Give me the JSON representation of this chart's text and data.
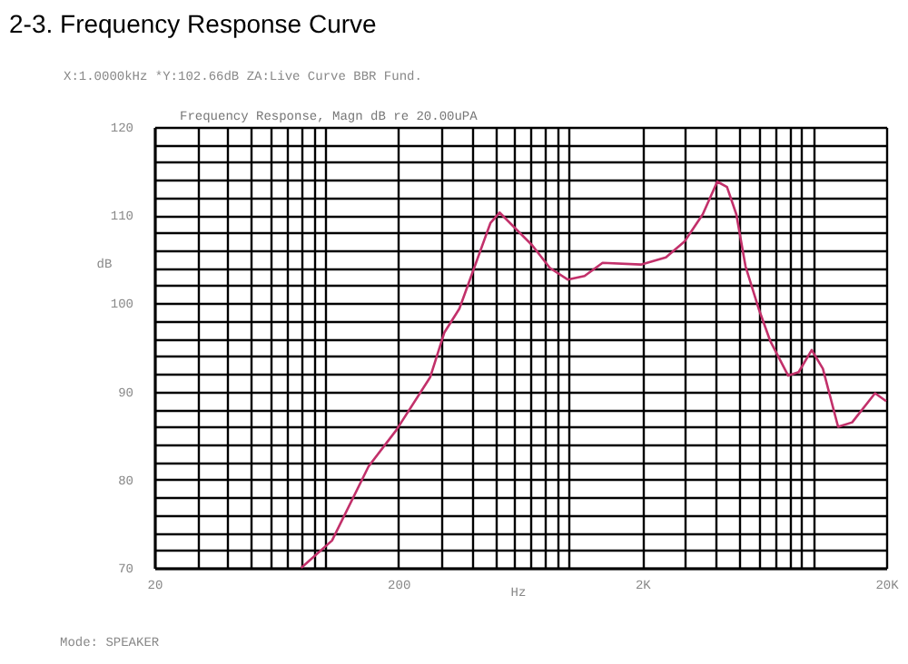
{
  "chart_data": {
    "type": "line",
    "title": "2-3. Frequency Response Curve",
    "subtitle": "Frequency Response, Magn dB re 20.00uPA",
    "xlabel": "Hz",
    "ylabel": "dB",
    "annotations": [
      "X:1.0000kHz   *Y:102.66dB    ZA:Live Curve   BBR Fund.",
      "Mode: SPEAKER"
    ],
    "log": "x",
    "grid": true,
    "marker": "none",
    "line_style": "solid",
    "xlim": [
      20,
      20000
    ],
    "ylim": [
      70,
      120
    ],
    "xticks": [
      20,
      {
        "value": 30,
        "label": null
      },
      {
        "value": 40,
        "label": null
      },
      {
        "value": 50,
        "label": null
      },
      {
        "value": 60,
        "label": null
      },
      {
        "value": 70,
        "label": null
      },
      {
        "value": 80,
        "label": null
      },
      {
        "value": 90,
        "label": null
      },
      {
        "value": 100,
        "label": null
      },
      200,
      {
        "value": 300,
        "label": null
      },
      {
        "value": 400,
        "label": null
      },
      {
        "value": 500,
        "label": null
      },
      {
        "value": 600,
        "label": null
      },
      {
        "value": 700,
        "label": null
      },
      {
        "value": 800,
        "label": null
      },
      {
        "value": 900,
        "label": null
      },
      {
        "value": 1000,
        "label": null
      },
      {
        "value": 2000,
        "label": "2K"
      },
      {
        "value": 3000,
        "label": null
      },
      {
        "value": 4000,
        "label": null
      },
      {
        "value": 5000,
        "label": null
      },
      {
        "value": 6000,
        "label": null
      },
      {
        "value": 7000,
        "label": null
      },
      {
        "value": 8000,
        "label": null
      },
      {
        "value": 9000,
        "label": null
      },
      {
        "value": 10000,
        "label": null
      },
      {
        "value": 20000,
        "label": "20K"
      }
    ],
    "yticks": [
      70,
      {
        "value": 72,
        "label": null
      },
      {
        "value": 74,
        "label": null
      },
      {
        "value": 76,
        "label": null
      },
      {
        "value": 78,
        "label": null
      },
      80,
      {
        "value": 82,
        "label": null
      },
      {
        "value": 84,
        "label": null
      },
      {
        "value": 86,
        "label": null
      },
      {
        "value": 88,
        "label": null
      },
      90,
      {
        "value": 92,
        "label": null
      },
      {
        "value": 94,
        "label": null
      },
      {
        "value": 96,
        "label": null
      },
      {
        "value": 98,
        "label": null
      },
      100,
      {
        "value": 102,
        "label": null
      },
      {
        "value": 104,
        "label": null
      },
      {
        "value": 106,
        "label": null
      },
      {
        "value": 108,
        "label": null
      },
      110,
      {
        "value": 112,
        "label": null
      },
      {
        "value": 114,
        "label": null
      },
      {
        "value": 116,
        "label": null
      },
      {
        "value": 118,
        "label": null
      },
      120
    ],
    "series": [
      {
        "color": "#c2306a",
        "x": [
          80,
          107,
          151,
          196,
          270,
          309,
          356,
          477,
          520,
          707,
          837,
          989,
          1160,
          1375,
          1974,
          2500,
          2980,
          3540,
          4060,
          4450,
          4860,
          5300,
          6000,
          6700,
          7930,
          8750,
          9900,
          11000,
          12700,
          14500,
          18000,
          20000
        ],
        "values": [
          70,
          73.1,
          81.5,
          85.6,
          91.6,
          96.7,
          99.4,
          109.1,
          110.3,
          106.6,
          104,
          102.7,
          103.1,
          104.6,
          104.4,
          105.2,
          107,
          110.1,
          113.8,
          113.2,
          110.1,
          104.2,
          99.4,
          95.7,
          91.8,
          92.2,
          94.7,
          92.6,
          86,
          86.5,
          89.8,
          88.9
        ]
      }
    ]
  }
}
